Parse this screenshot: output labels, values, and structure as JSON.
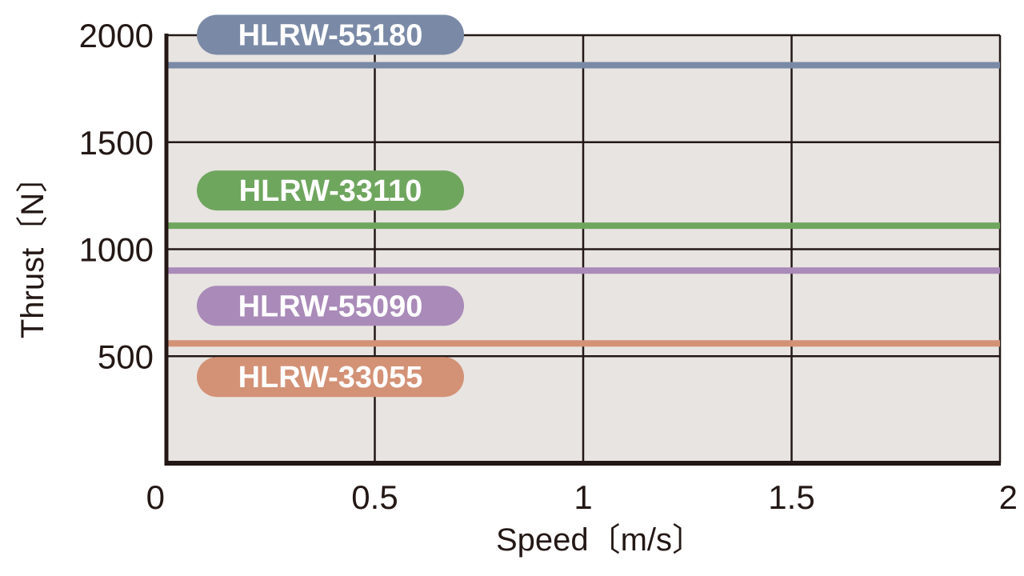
{
  "chart_data": {
    "type": "line",
    "xlabel": "Speed〔m/s〕",
    "ylabel": "Thrust〔N〕",
    "xlim": [
      0,
      2
    ],
    "ylim": [
      0,
      2000
    ],
    "x_ticks": [
      "0",
      "0.5",
      "1",
      "1.5",
      "2"
    ],
    "y_ticks": [
      "500",
      "1000",
      "1500",
      "2000"
    ],
    "grid": true,
    "background_color": "#e8e4e1",
    "series": [
      {
        "name": "HLRW-55180",
        "x": [
          0,
          2
        ],
        "y": [
          1860,
          1860
        ],
        "color": "#7a8aa6"
      },
      {
        "name": "HLRW-33110",
        "x": [
          0,
          2
        ],
        "y": [
          1110,
          1110
        ],
        "color": "#6fa65e"
      },
      {
        "name": "HLRW-55090",
        "x": [
          0,
          2
        ],
        "y": [
          900,
          900
        ],
        "color": "#a98ab8"
      },
      {
        "name": "HLRW-33055",
        "x": [
          0,
          2
        ],
        "y": [
          560,
          560
        ],
        "color": "#d39276"
      }
    ]
  }
}
